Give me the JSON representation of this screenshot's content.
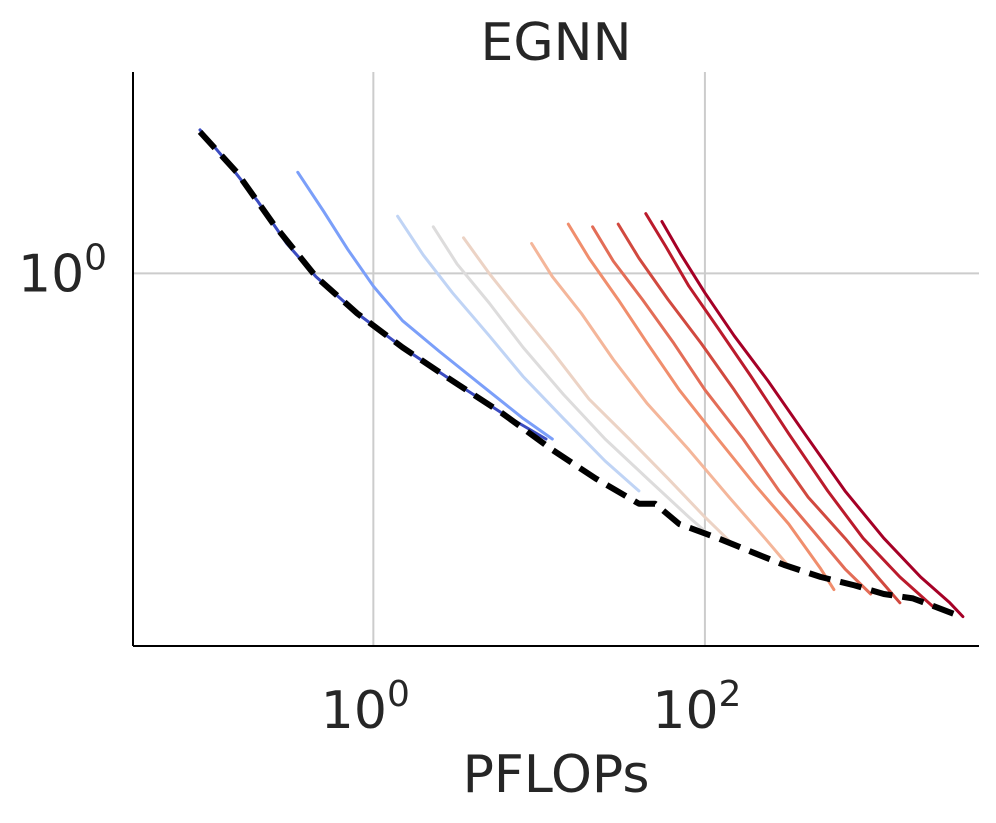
{
  "chart_data": {
    "type": "line",
    "title": "EGNN",
    "xlabel": "PFLOPs",
    "ylabel": "",
    "xscale": "log",
    "yscale": "log",
    "xlim": [
      0.0355,
      4500
    ],
    "ylim": [
      0.305,
      1.9
    ],
    "grid": true,
    "legend": "none",
    "x_ticks": [
      {
        "value": 1,
        "base": "10",
        "exp": "0"
      },
      {
        "value": 100,
        "base": "10",
        "exp": "2"
      }
    ],
    "y_ticks": [
      {
        "value": 1,
        "base": "10",
        "exp": "0"
      }
    ],
    "series": [
      {
        "color": "#3b4cc0",
        "points": [
          [
            0.09,
            1.58
          ],
          [
            0.13,
            1.43
          ],
          [
            0.2,
            1.26
          ],
          [
            0.3,
            1.1
          ],
          [
            0.45,
            0.99
          ],
          [
            0.8,
            0.88
          ],
          [
            1.5,
            0.79
          ],
          [
            3,
            0.71
          ],
          [
            6,
            0.64
          ],
          [
            11,
            0.59
          ]
        ]
      },
      {
        "color": "#7b9ff9",
        "points": [
          [
            0.35,
            1.38
          ],
          [
            0.5,
            1.22
          ],
          [
            0.7,
            1.08
          ],
          [
            1.0,
            0.96
          ],
          [
            1.5,
            0.86
          ],
          [
            2.5,
            0.78
          ],
          [
            4.5,
            0.7
          ],
          [
            8,
            0.63
          ],
          [
            12,
            0.59
          ]
        ]
      },
      {
        "color": "#c0d4f5",
        "points": [
          [
            1.4,
            1.2
          ],
          [
            2,
            1.06
          ],
          [
            3,
            0.94
          ],
          [
            5,
            0.82
          ],
          [
            8,
            0.72
          ],
          [
            14,
            0.63
          ],
          [
            25,
            0.55
          ],
          [
            40,
            0.5
          ]
        ]
      },
      {
        "color": "#dddcdc",
        "points": [
          [
            2.3,
            1.16
          ],
          [
            3.2,
            1.03
          ],
          [
            5,
            0.91
          ],
          [
            8,
            0.79
          ],
          [
            14,
            0.68
          ],
          [
            25,
            0.59
          ],
          [
            45,
            0.52
          ],
          [
            80,
            0.46
          ],
          [
            100,
            0.44
          ]
        ]
      },
      {
        "color": "#ecd3c5",
        "points": [
          [
            3.5,
            1.12
          ],
          [
            5,
            1.0
          ],
          [
            7.5,
            0.89
          ],
          [
            12,
            0.78
          ],
          [
            20,
            0.67
          ],
          [
            35,
            0.59
          ],
          [
            60,
            0.52
          ],
          [
            100,
            0.46
          ],
          [
            150,
            0.42
          ]
        ]
      },
      {
        "color": "#f4b69a",
        "points": [
          [
            9,
            1.1
          ],
          [
            12,
            0.99
          ],
          [
            18,
            0.88
          ],
          [
            28,
            0.76
          ],
          [
            45,
            0.66
          ],
          [
            80,
            0.57
          ],
          [
            140,
            0.49
          ],
          [
            230,
            0.43
          ],
          [
            330,
            0.39
          ]
        ]
      },
      {
        "color": "#f08e6d",
        "points": [
          [
            15,
            1.17
          ],
          [
            20,
            1.05
          ],
          [
            30,
            0.92
          ],
          [
            45,
            0.8
          ],
          [
            70,
            0.69
          ],
          [
            120,
            0.59
          ],
          [
            200,
            0.51
          ],
          [
            320,
            0.45
          ],
          [
            500,
            0.39
          ],
          [
            600,
            0.365
          ]
        ]
      },
      {
        "color": "#e36d57",
        "points": [
          [
            21,
            1.16
          ],
          [
            28,
            1.04
          ],
          [
            42,
            0.92
          ],
          [
            65,
            0.8
          ],
          [
            100,
            0.69
          ],
          [
            170,
            0.59
          ],
          [
            280,
            0.5
          ],
          [
            450,
            0.44
          ],
          [
            700,
            0.39
          ],
          [
            1000,
            0.36
          ]
        ]
      },
      {
        "color": "#d1493f",
        "points": [
          [
            30,
            1.17
          ],
          [
            40,
            1.05
          ],
          [
            60,
            0.92
          ],
          [
            95,
            0.8
          ],
          [
            150,
            0.69
          ],
          [
            250,
            0.58
          ],
          [
            420,
            0.49
          ],
          [
            700,
            0.43
          ],
          [
            1100,
            0.38
          ],
          [
            1500,
            0.35
          ]
        ]
      },
      {
        "color": "#bb1b2c",
        "points": [
          [
            44,
            1.21
          ],
          [
            58,
            1.09
          ],
          [
            80,
            0.96
          ],
          [
            120,
            0.84
          ],
          [
            190,
            0.72
          ],
          [
            320,
            0.6
          ],
          [
            550,
            0.5
          ],
          [
            900,
            0.43
          ],
          [
            1500,
            0.38
          ],
          [
            2400,
            0.345
          ]
        ]
      },
      {
        "color": "#a50026",
        "points": [
          [
            55,
            1.18
          ],
          [
            72,
            1.06
          ],
          [
            100,
            0.94
          ],
          [
            150,
            0.82
          ],
          [
            240,
            0.71
          ],
          [
            400,
            0.6
          ],
          [
            700,
            0.5
          ],
          [
            1200,
            0.43
          ],
          [
            2000,
            0.38
          ],
          [
            3000,
            0.35
          ],
          [
            3600,
            0.335
          ]
        ]
      }
    ],
    "frontier": {
      "color": "#000000",
      "points": [
        [
          0.09,
          1.57
        ],
        [
          0.15,
          1.38
        ],
        [
          0.25,
          1.17
        ],
        [
          0.45,
          0.99
        ],
        [
          0.8,
          0.88
        ],
        [
          1.5,
          0.79
        ],
        [
          3,
          0.71
        ],
        [
          6,
          0.64
        ],
        [
          12,
          0.57
        ],
        [
          22,
          0.52
        ],
        [
          40,
          0.48
        ],
        [
          50,
          0.48
        ],
        [
          70,
          0.45
        ],
        [
          120,
          0.43
        ],
        [
          200,
          0.41
        ],
        [
          300,
          0.395
        ],
        [
          500,
          0.38
        ],
        [
          800,
          0.37
        ],
        [
          1200,
          0.36
        ],
        [
          1800,
          0.355
        ],
        [
          2500,
          0.345
        ],
        [
          3500,
          0.335
        ]
      ]
    }
  }
}
